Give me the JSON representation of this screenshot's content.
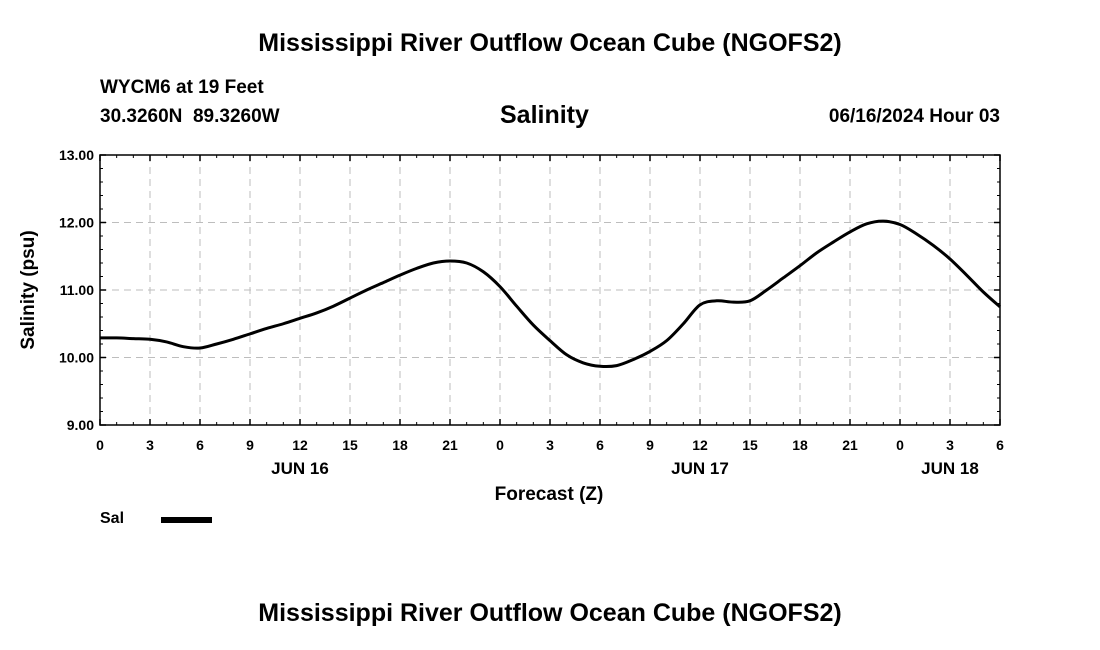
{
  "header": {
    "title_top": "Mississippi River Outflow Ocean Cube (NGOFS2)",
    "title_bottom": "Mississippi River Outflow Ocean Cube (NGOFS2)",
    "station": "WYCM6 at 19 Feet",
    "coords": "30.3260N  89.3260W",
    "date": "06/16/2024 Hour 03"
  },
  "legend": {
    "label": "Sal"
  },
  "chart_data": {
    "type": "line",
    "title": "Salinity",
    "xlabel": "Forecast (Z)",
    "ylabel": "Salinity (psu)",
    "xlim": [
      0,
      54
    ],
    "ylim": [
      9.0,
      13.0
    ],
    "y_ticks": [
      "9.00",
      "10.00",
      "11.00",
      "12.00",
      "13.00"
    ],
    "x_tick_labels": [
      "0",
      "3",
      "6",
      "9",
      "12",
      "15",
      "18",
      "21",
      "0",
      "3",
      "6",
      "9",
      "12",
      "15",
      "18",
      "21",
      "0",
      "3",
      "6"
    ],
    "day_labels": [
      {
        "label": "JUN 16",
        "hour": 12
      },
      {
        "label": "JUN 17",
        "hour": 36
      },
      {
        "label": "JUN 18",
        "hour": 51
      }
    ],
    "grid": true,
    "series": [
      {
        "name": "Sal",
        "color": "#000000",
        "x": [
          0,
          1,
          2,
          3,
          4,
          5,
          6,
          7,
          8,
          9,
          10,
          11,
          12,
          13,
          14,
          15,
          16,
          17,
          18,
          19,
          20,
          21,
          22,
          23,
          24,
          25,
          26,
          27,
          28,
          29,
          30,
          31,
          32,
          33,
          34,
          35,
          36,
          37,
          38,
          39,
          40,
          41,
          42,
          43,
          44,
          45,
          46,
          47,
          48,
          49,
          50,
          51,
          52,
          53,
          54
        ],
        "values": [
          10.29,
          10.29,
          10.28,
          10.27,
          10.23,
          10.16,
          10.14,
          10.2,
          10.27,
          10.35,
          10.43,
          10.5,
          10.58,
          10.66,
          10.76,
          10.88,
          11.0,
          11.11,
          11.22,
          11.32,
          11.4,
          11.43,
          11.4,
          11.27,
          11.05,
          10.76,
          10.48,
          10.25,
          10.04,
          9.92,
          9.87,
          9.88,
          9.97,
          10.09,
          10.25,
          10.5,
          10.78,
          10.84,
          10.82,
          10.84,
          11.0,
          11.18,
          11.36,
          11.55,
          11.71,
          11.86,
          11.98,
          12.02,
          11.97,
          11.83,
          11.66,
          11.46,
          11.22,
          10.97,
          10.75
        ]
      }
    ]
  }
}
